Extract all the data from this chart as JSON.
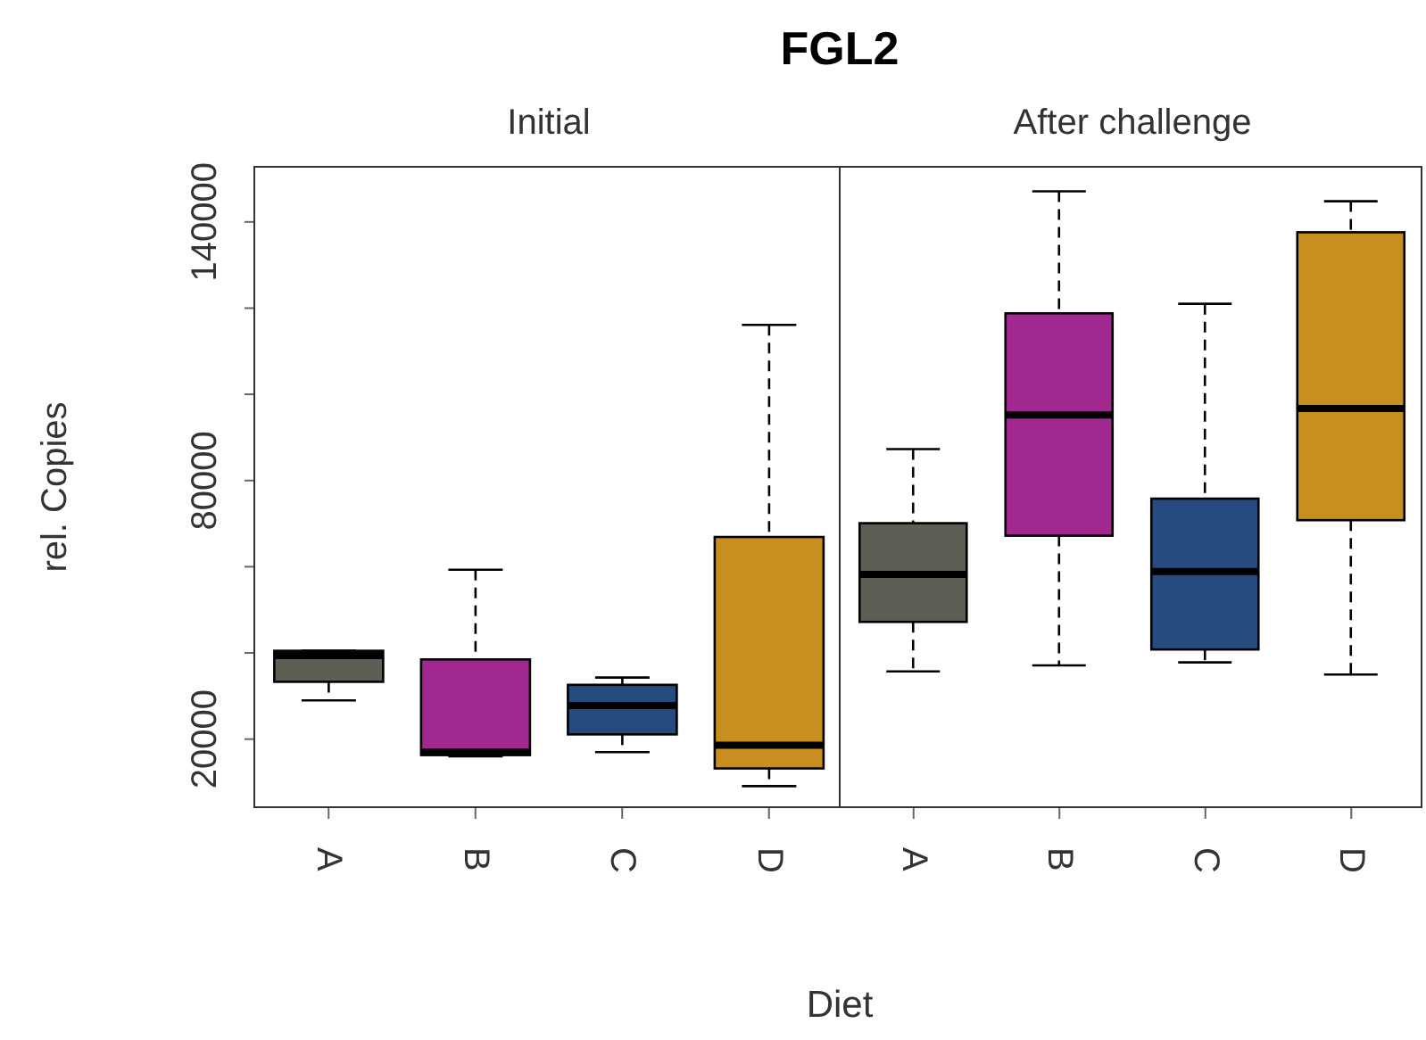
{
  "chart_data": [
    {
      "type": "box",
      "title": "FGL2",
      "subtitle": "Initial",
      "xlabel": "Diet",
      "ylabel": "rel. Copies",
      "categories": [
        "A",
        "B",
        "C",
        "D"
      ],
      "colors": [
        "#5f5e55",
        "#a0288f",
        "#264b7e",
        "#c88f1e"
      ],
      "boxes": [
        {
          "low": 29000,
          "q1": 33300,
          "median": 39400,
          "q3": 40500,
          "high": 40500
        },
        {
          "low": 16000,
          "q1": 16300,
          "median": 17000,
          "q3": 38500,
          "high": 59300
        },
        {
          "low": 17000,
          "q1": 21100,
          "median": 27800,
          "q3": 32600,
          "high": 34300
        },
        {
          "low": 9100,
          "q1": 13200,
          "median": 18600,
          "q3": 66900,
          "high": 116100
        }
      ],
      "ylim": [
        4000,
        153000
      ],
      "yticks": [
        20000,
        {
          "value": 40000,
          "label": null
        },
        {
          "value": 60000,
          "label": null
        },
        80000,
        {
          "value": 100000,
          "label": null
        },
        {
          "value": 120000,
          "label": null
        },
        140000
      ]
    },
    {
      "type": "box",
      "subtitle": "After challenge",
      "categories": [
        "A",
        "B",
        "C",
        "D"
      ],
      "colors": [
        "#5f5e55",
        "#a0288f",
        "#264b7e",
        "#c88f1e"
      ],
      "boxes": [
        {
          "low": 35700,
          "q1": 47200,
          "median": 58200,
          "q3": 70100,
          "high": 87300
        },
        {
          "low": 37100,
          "q1": 67200,
          "median": 95200,
          "q3": 118800,
          "high": 147100
        },
        {
          "low": 37800,
          "q1": 40800,
          "median": 58900,
          "q3": 75800,
          "high": 121000
        },
        {
          "low": 35000,
          "q1": 70800,
          "median": 96700,
          "q3": 137600,
          "high": 144800
        }
      ],
      "ylim": [
        4000,
        153000
      ],
      "tick_labels": "x"
    }
  ]
}
